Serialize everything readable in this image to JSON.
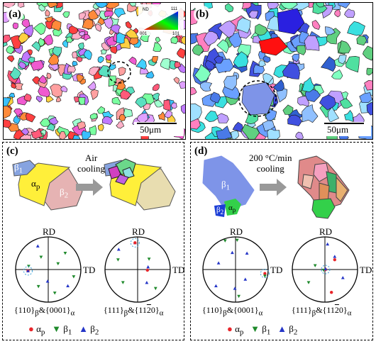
{
  "panels": {
    "a": {
      "label": "(a)",
      "scale": "50μm"
    },
    "b": {
      "label": "(b)",
      "scale": "50μm"
    },
    "c": {
      "label": "(c)",
      "process": "Air cooling",
      "process_line1": "Air",
      "process_line2": "cooling",
      "grains": {
        "b1": "β",
        "b1_sub": "1",
        "ap": "α",
        "ap_sub": "p",
        "b2": "β",
        "b2_sub": "2"
      },
      "pf_left_title": "{110}",
      "pf_left_sub1": "β",
      "pf_left_amp": "&{0001}",
      "pf_left_sub2": "α",
      "pf_right_title": "{111}",
      "pf_right_sub1": "β",
      "pf_right_amp": "&{11",
      "pf_right_bar": "2",
      "pf_right_end": "0}",
      "pf_right_sub2": "α"
    },
    "d": {
      "label": "(d)",
      "process_line1": "200 °C/min",
      "process_line2": "cooling",
      "grains": {
        "b1": "β",
        "b1_sub": "1",
        "b2": "β",
        "b2_sub": "2",
        "ap": "α",
        "ap_sub": "p"
      },
      "pf_left_title": "{110}",
      "pf_left_sub1": "β",
      "pf_left_amp": "&{0001}",
      "pf_left_sub2": "α",
      "pf_right_title": "{111}",
      "pf_right_sub1": "β",
      "pf_right_amp": "&{11",
      "pf_right_bar": "2",
      "pf_right_end": "0}",
      "pf_right_sub2": "α"
    }
  },
  "ipf_key": {
    "nd": "ND",
    "c111": "111",
    "c001": "001",
    "c101": "101"
  },
  "pole_figure": {
    "rd": "RD",
    "td": "TD"
  },
  "legend": [
    {
      "symbol": "●",
      "name": "α",
      "sub": "p",
      "color": "#e8262b"
    },
    {
      "symbol": "▼",
      "name": "β",
      "sub": "1",
      "color": "#1f8a2c"
    },
    {
      "symbol": "▲",
      "name": "β",
      "sub": "2",
      "color": "#2536c7"
    }
  ]
}
